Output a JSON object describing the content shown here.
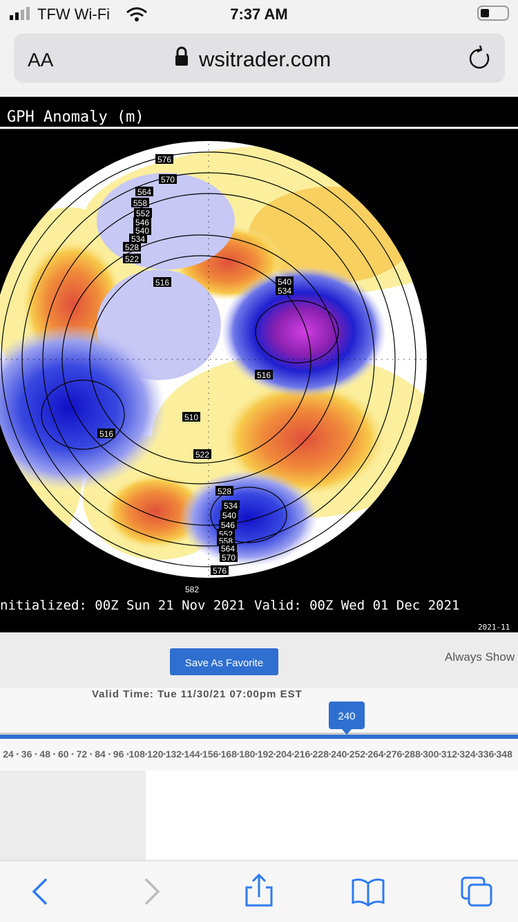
{
  "status_bar": {
    "carrier": "TFW Wi-Fi",
    "time": "7:37 AM"
  },
  "address_bar": {
    "text_size": "AA",
    "url": "wsitrader.com"
  },
  "map": {
    "title": "GPH Anomaly (m)",
    "contour_labels": [
      "576",
      "570",
      "564",
      "558",
      "552",
      "546",
      "540",
      "534",
      "528",
      "522",
      "516",
      "540",
      "534",
      "516",
      "510",
      "516",
      "522",
      "528",
      "534",
      "540",
      "546",
      "552",
      "558",
      "564",
      "570",
      "576",
      "582"
    ],
    "initialized": "nitialized: 00Z Sun 21 Nov 2021",
    "valid": "Valid: 00Z Wed 01 Dec 2021",
    "stamp": "2021-11"
  },
  "controls": {
    "favorite_button": "Save As Favorite",
    "always_show": "Always Show",
    "valid_time": "Valid Time: Tue 11/30/21 07:00pm EST",
    "slider_value": "240",
    "hours": [
      24,
      36,
      48,
      60,
      72,
      84,
      96,
      108,
      120,
      132,
      144,
      156,
      168,
      180,
      192,
      204,
      216,
      228,
      240,
      252,
      264,
      276,
      288,
      300,
      312,
      324,
      336,
      348
    ]
  }
}
